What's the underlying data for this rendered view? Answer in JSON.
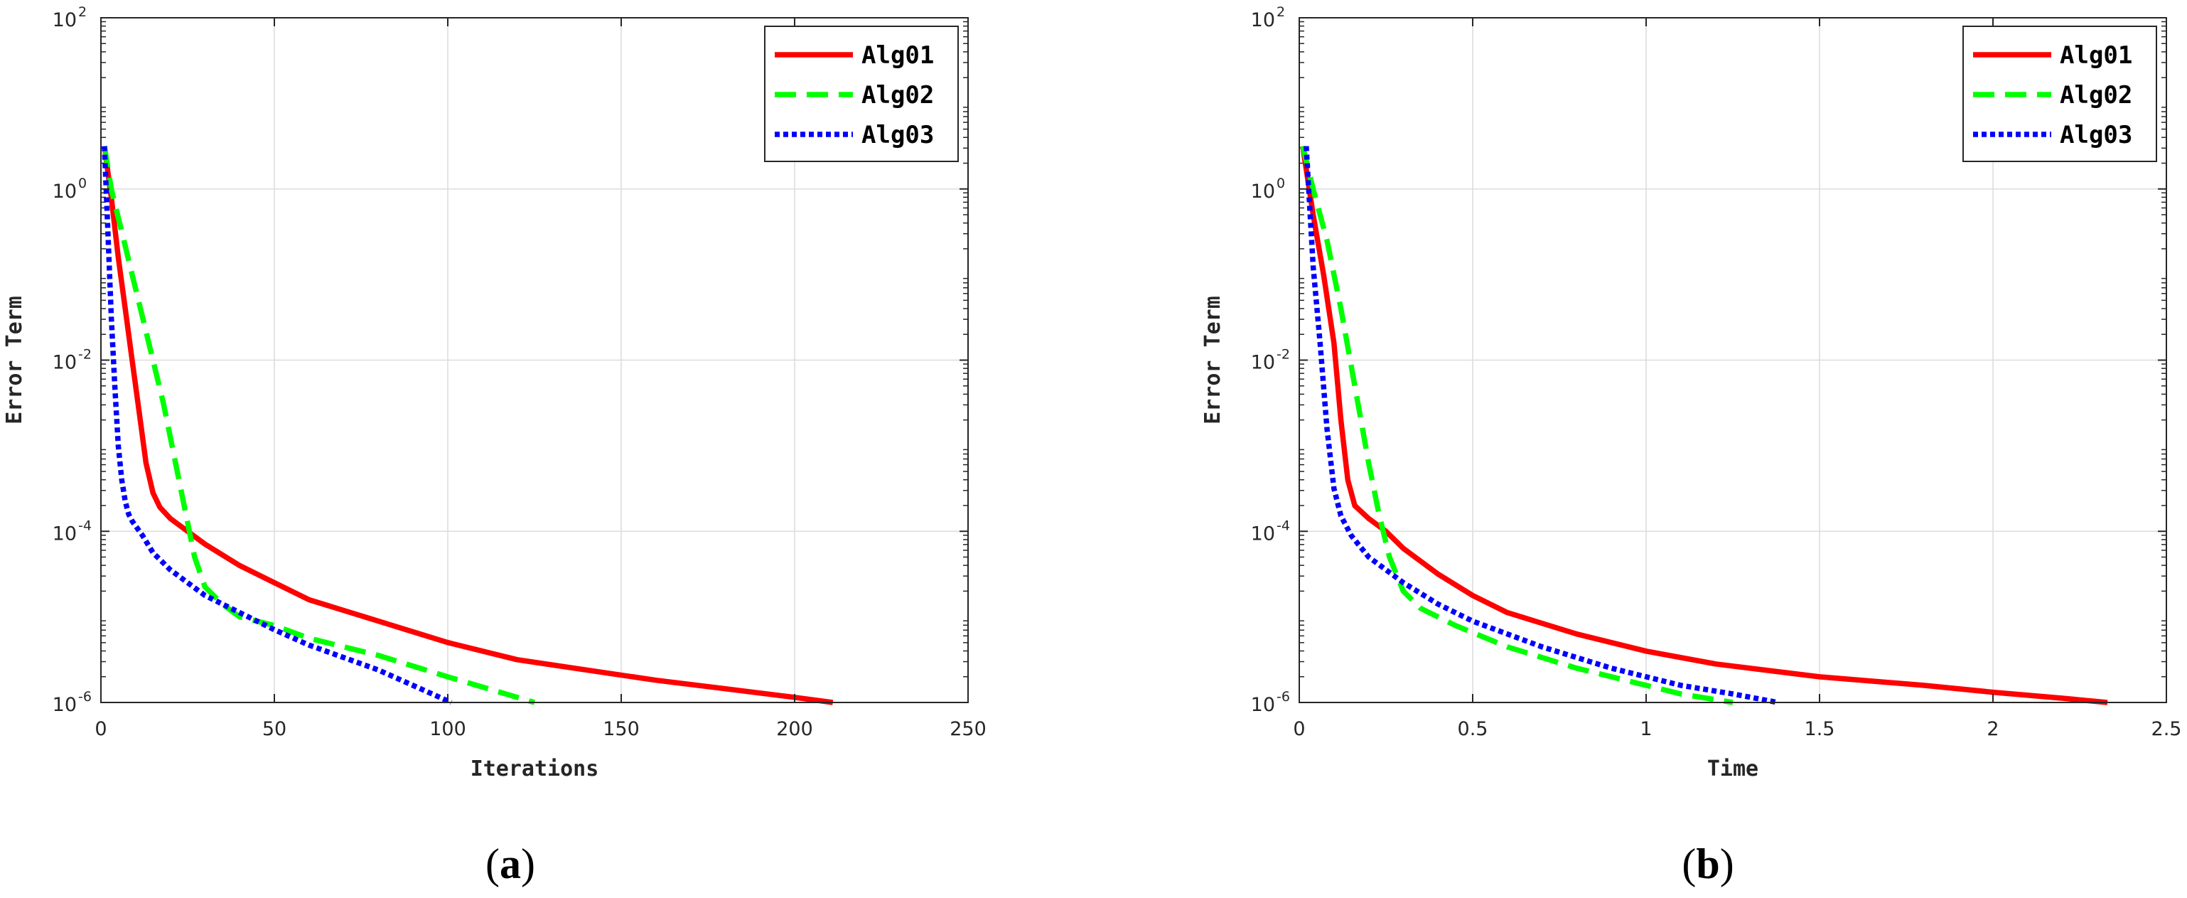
{
  "figure": {
    "captions": [
      {
        "open": "(",
        "letter": "a",
        "close": ")"
      },
      {
        "open": "(",
        "letter": "b",
        "close": ")"
      }
    ]
  },
  "chart_data": [
    {
      "type": "line",
      "panel": "a",
      "xlabel": "Iterations",
      "ylabel": "Error Term",
      "xscale": "linear",
      "yscale": "log",
      "xlim": [
        0,
        250
      ],
      "ylim_exp": [
        -6,
        2
      ],
      "x_ticks": [
        0,
        50,
        100,
        150,
        200,
        250
      ],
      "x_tick_labels": [
        "0",
        "50",
        "100",
        "150",
        "200",
        "250"
      ],
      "y_tick_exponents": [
        -6,
        -4,
        -2,
        0,
        2
      ],
      "y_tick_base": "10",
      "y_tick_exp_labels": [
        "-6",
        "-4",
        "-2",
        "0",
        "2"
      ],
      "grid": true,
      "legend_position": "top-right",
      "series": [
        {
          "name": "Alg01",
          "color": "#ff0000",
          "style": "solid",
          "x": [
            1,
            3,
            5,
            7,
            9,
            11,
            13,
            15,
            17,
            20,
            25,
            30,
            40,
            50,
            60,
            80,
            100,
            120,
            140,
            160,
            180,
            200,
            211
          ],
          "log10_y": [
            0.5,
            -0.1,
            -0.8,
            -1.4,
            -2.0,
            -2.6,
            -3.2,
            -3.55,
            -3.72,
            -3.85,
            -4.0,
            -4.15,
            -4.4,
            -4.6,
            -4.8,
            -5.05,
            -5.3,
            -5.5,
            -5.62,
            -5.74,
            -5.84,
            -5.94,
            -6.0
          ]
        },
        {
          "name": "Alg02",
          "color": "#00ff00",
          "style": "dashed",
          "x": [
            1,
            3,
            6,
            9,
            12,
            15,
            18,
            21,
            24,
            27,
            30,
            35,
            40,
            50,
            60,
            80,
            100,
            110,
            125
          ],
          "log10_y": [
            0.5,
            0.0,
            -0.5,
            -1.0,
            -1.5,
            -2.0,
            -2.5,
            -3.1,
            -3.7,
            -4.3,
            -4.65,
            -4.85,
            -5.0,
            -5.1,
            -5.25,
            -5.45,
            -5.7,
            -5.82,
            -6.0
          ]
        },
        {
          "name": "Alg03",
          "color": "#0000ff",
          "style": "dotted",
          "x": [
            1,
            2,
            3,
            4,
            5,
            6,
            7,
            8,
            9,
            12,
            15,
            20,
            25,
            30,
            40,
            50,
            60,
            80,
            101
          ],
          "log10_y": [
            0.5,
            -0.5,
            -1.5,
            -2.3,
            -3.0,
            -3.4,
            -3.65,
            -3.8,
            -3.88,
            -4.05,
            -4.25,
            -4.45,
            -4.6,
            -4.75,
            -4.95,
            -5.15,
            -5.33,
            -5.62,
            -6.0
          ]
        }
      ]
    },
    {
      "type": "line",
      "panel": "b",
      "xlabel": "Time",
      "ylabel": "Error Term",
      "xscale": "linear",
      "yscale": "log",
      "xlim": [
        0,
        2.5
      ],
      "ylim_exp": [
        -6,
        2
      ],
      "x_ticks": [
        0,
        0.5,
        1,
        1.5,
        2,
        2.5
      ],
      "x_tick_labels": [
        "0",
        "0.5",
        "1",
        "1.5",
        "2",
        "2.5"
      ],
      "y_tick_exponents": [
        -6,
        -4,
        -2,
        0,
        2
      ],
      "y_tick_base": "10",
      "y_tick_exp_labels": [
        "-6",
        "-4",
        "-2",
        "0",
        "2"
      ],
      "grid": true,
      "legend_position": "top-right",
      "series": [
        {
          "name": "Alg01",
          "color": "#ff0000",
          "style": "solid",
          "x": [
            0.01,
            0.04,
            0.07,
            0.1,
            0.12,
            0.14,
            0.16,
            0.2,
            0.25,
            0.3,
            0.4,
            0.5,
            0.6,
            0.8,
            1.0,
            1.2,
            1.5,
            1.8,
            2.0,
            2.2,
            2.33
          ],
          "log10_y": [
            0.5,
            -0.3,
            -1.0,
            -1.8,
            -2.7,
            -3.4,
            -3.7,
            -3.85,
            -4.0,
            -4.2,
            -4.5,
            -4.75,
            -4.95,
            -5.2,
            -5.4,
            -5.55,
            -5.7,
            -5.8,
            -5.88,
            -5.95,
            -6.0
          ]
        },
        {
          "name": "Alg02",
          "color": "#00ff00",
          "style": "dashed",
          "x": [
            0.01,
            0.04,
            0.08,
            0.12,
            0.16,
            0.2,
            0.23,
            0.26,
            0.3,
            0.35,
            0.45,
            0.6,
            0.8,
            1.0,
            1.1,
            1.25
          ],
          "log10_y": [
            0.5,
            0.0,
            -0.6,
            -1.4,
            -2.3,
            -3.2,
            -3.8,
            -4.3,
            -4.7,
            -4.9,
            -5.1,
            -5.35,
            -5.6,
            -5.8,
            -5.9,
            -6.0
          ]
        },
        {
          "name": "Alg03",
          "color": "#0000ff",
          "style": "dotted",
          "x": [
            0.02,
            0.03,
            0.04,
            0.06,
            0.08,
            0.1,
            0.12,
            0.15,
            0.2,
            0.3,
            0.4,
            0.5,
            0.7,
            0.9,
            1.1,
            1.25,
            1.38
          ],
          "log10_y": [
            0.5,
            -0.2,
            -0.9,
            -1.8,
            -2.8,
            -3.5,
            -3.82,
            -4.05,
            -4.3,
            -4.6,
            -4.85,
            -5.05,
            -5.35,
            -5.6,
            -5.8,
            -5.9,
            -6.0
          ]
        }
      ]
    }
  ]
}
